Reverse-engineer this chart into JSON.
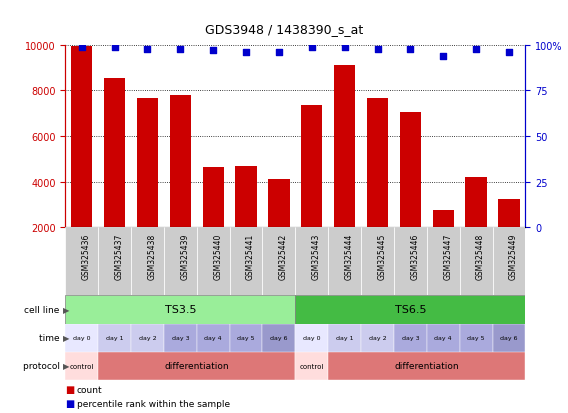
{
  "title": "GDS3948 / 1438390_s_at",
  "samples": [
    "GSM325436",
    "GSM325437",
    "GSM325438",
    "GSM325439",
    "GSM325440",
    "GSM325441",
    "GSM325442",
    "GSM325443",
    "GSM325444",
    "GSM325445",
    "GSM325446",
    "GSM325447",
    "GSM325448",
    "GSM325449"
  ],
  "counts": [
    9950,
    8530,
    7650,
    7800,
    4650,
    4680,
    4100,
    7350,
    9100,
    7680,
    7050,
    2750,
    4200,
    3250
  ],
  "percentile_ranks": [
    99,
    99,
    98,
    98,
    97,
    96,
    96,
    99,
    99,
    98,
    98,
    94,
    98,
    96
  ],
  "cell_line_ts35": [
    0,
    6
  ],
  "cell_line_ts65": [
    7,
    13
  ],
  "cell_line_color_ts35": "#99ee99",
  "cell_line_color_ts65": "#44bb44",
  "time_labels": [
    "day 0",
    "day 1",
    "day 2",
    "day 3",
    "day 4",
    "day 5",
    "day 6",
    "day 0",
    "day 1",
    "day 2",
    "day 3",
    "day 4",
    "day 5",
    "day 6"
  ],
  "time_colors": [
    "#e8e8ff",
    "#ccccee",
    "#ccccee",
    "#aaaadd",
    "#aaaadd",
    "#aaaadd",
    "#9999cc",
    "#e8e8ff",
    "#ccccee",
    "#ccccee",
    "#aaaadd",
    "#aaaadd",
    "#aaaadd",
    "#9999cc"
  ],
  "protocol_control_color": "#ffdddd",
  "protocol_diff_color": "#dd7777",
  "proto_blocks": [
    [
      0,
      0,
      "control"
    ],
    [
      1,
      6,
      "differentiation"
    ],
    [
      7,
      7,
      "control"
    ],
    [
      8,
      13,
      "differentiation"
    ]
  ],
  "bar_color": "#cc0000",
  "percentile_color": "#0000cc",
  "left_axis_color": "#cc0000",
  "right_axis_color": "#0000cc",
  "ylim_left": [
    2000,
    10000
  ],
  "ylim_right": [
    0,
    100
  ],
  "yticks_left": [
    2000,
    4000,
    6000,
    8000,
    10000
  ],
  "yticks_right": [
    0,
    25,
    50,
    75,
    100
  ],
  "xlabel_bg": "#cccccc",
  "fig_width": 5.68,
  "fig_height": 4.14,
  "dpi": 100
}
